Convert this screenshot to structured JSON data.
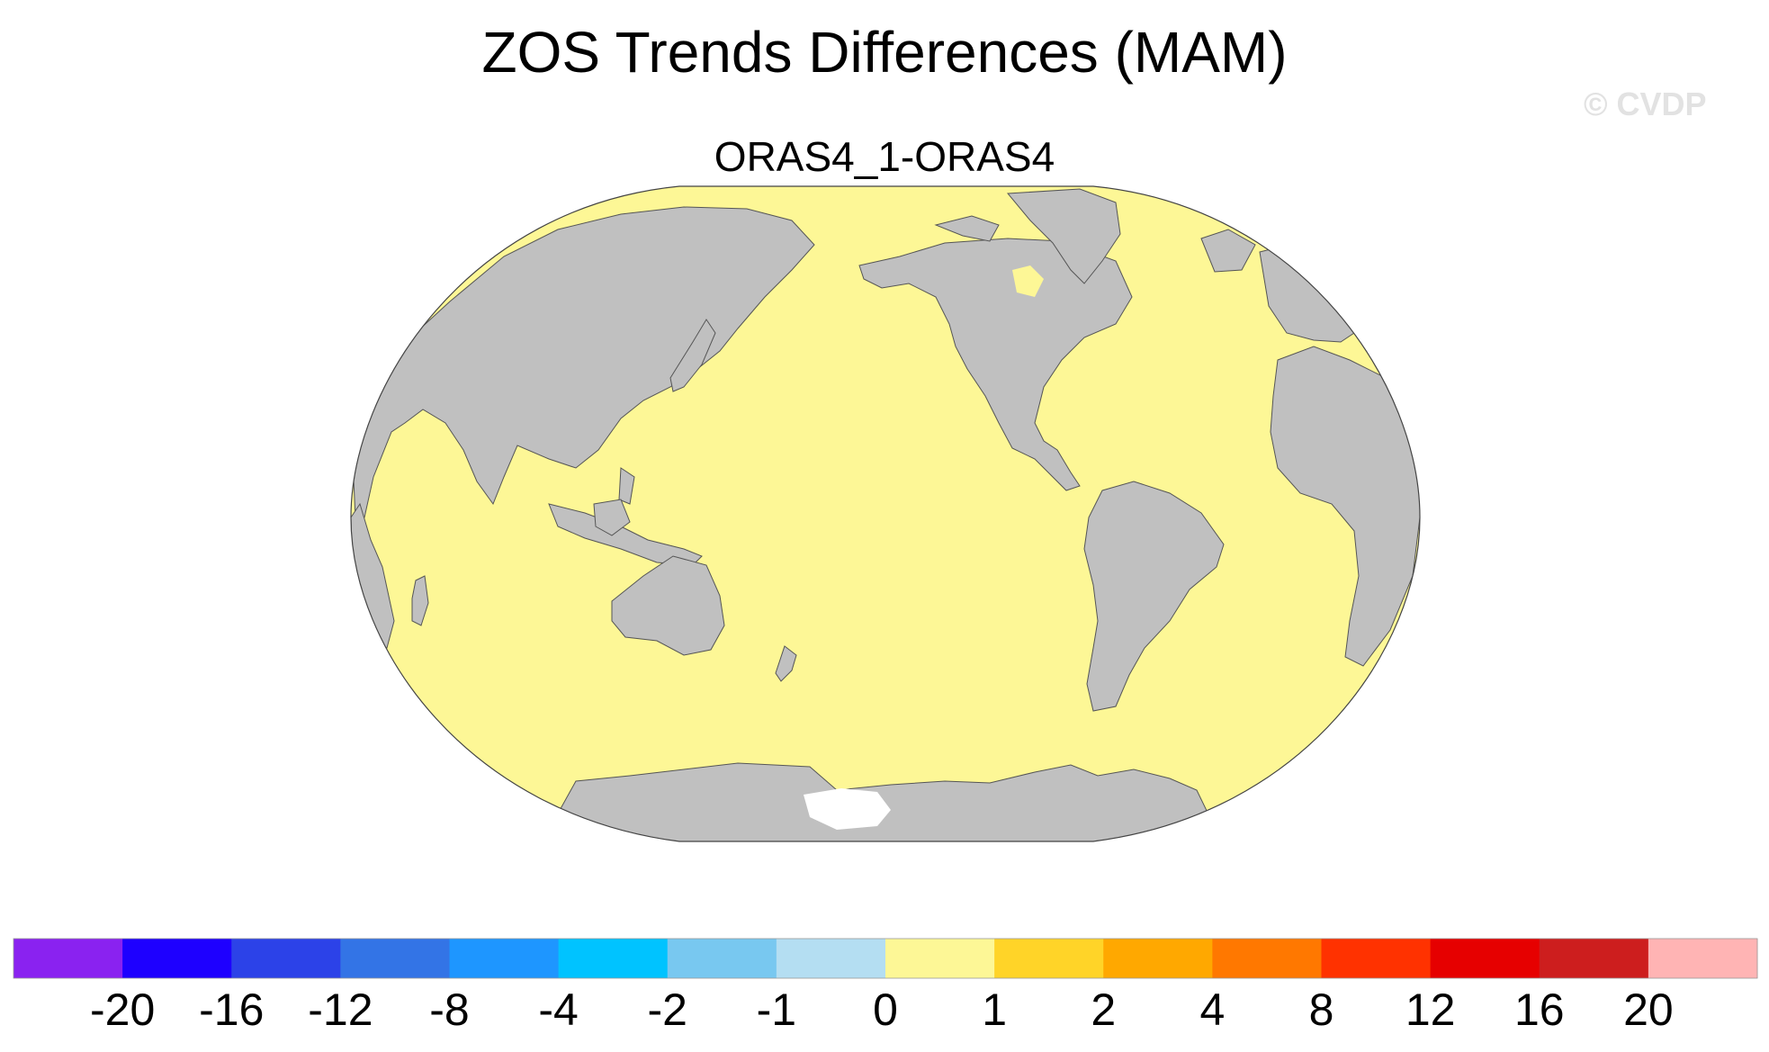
{
  "title": "ZOS Trends Differences (MAM)",
  "subtitle": "ORAS4_1-ORAS4",
  "watermark": "© CVDP",
  "map": {
    "projection": "robinson",
    "central_longitude": 200,
    "ocean_fill_value": "0 to 1",
    "colors": {
      "land": "#c0c0c0",
      "ocean": "#fdf796",
      "missing": "#ffffff",
      "outline": "#555555"
    }
  },
  "colorbar": {
    "labels": [
      "-20",
      "-16",
      "-12",
      "-8",
      "-4",
      "-2",
      "-1",
      "0",
      "1",
      "2",
      "4",
      "8",
      "12",
      "16",
      "20"
    ],
    "colors": [
      "#8a22f0",
      "#1e00ff",
      "#2c42e8",
      "#3374e6",
      "#1e96ff",
      "#00c3ff",
      "#78c8f0",
      "#b4def2",
      "#fdf796",
      "#ffd428",
      "#ffa800",
      "#ff7800",
      "#ff3200",
      "#e60000",
      "#cd1e1e",
      "#ffb4b4"
    ]
  }
}
